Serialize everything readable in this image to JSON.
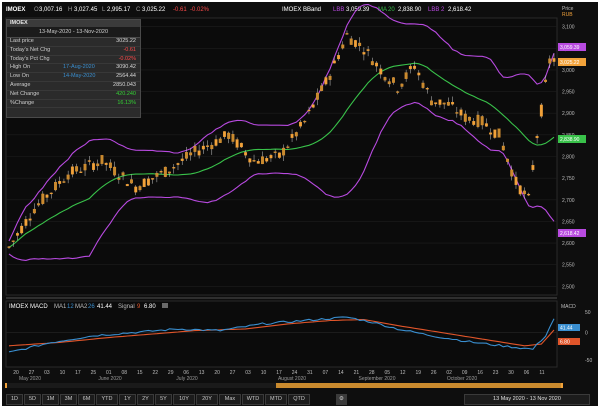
{
  "header": {
    "symbol": "IMOEX",
    "open_label": "O",
    "open": "3,007.16",
    "high_label": "H",
    "high": "3,027.45",
    "low_label": "L",
    "low": "2,995.17",
    "close_label": "C",
    "close": "3,025.22",
    "change": "-0.61",
    "change_pct": "-0.02%",
    "bb_label": "IMOEX BBand",
    "lbb_label": "LBB",
    "lbb_value": "3,059.39",
    "ma_label": "MA",
    "ma_period": "20",
    "ma_value": "2,838.90",
    "lbb2_label": "LBB",
    "lbb2_period": "2",
    "lbb2_value": "2,618.42",
    "price_label": "Price",
    "currency": "RUB"
  },
  "panel": {
    "title": "IMOEX",
    "date_range": "13-May-2020 - 13-Nov-2020",
    "rows": [
      {
        "label": "Last price",
        "mid": "",
        "value": "3025.22",
        "color": "#d8d8d8"
      },
      {
        "label": "Today's Net Chg",
        "mid": "",
        "value": "-0.61",
        "color": "#ff4a4a"
      },
      {
        "label": "Today's Pct Chg",
        "mid": "",
        "value": "-0.02%",
        "color": "#ff4a4a"
      },
      {
        "label": "High On",
        "mid": "17-Aug-2020",
        "value": "3090.42",
        "color": "#d8d8d8"
      },
      {
        "label": "Low On",
        "mid": "14-May-2020",
        "value": "2564.44",
        "color": "#d8d8d8"
      },
      {
        "label": "Average",
        "mid": "",
        "value": "2850.043",
        "color": "#d8d8d8"
      },
      {
        "label": "Net Change",
        "mid": "",
        "value": "420.240",
        "color": "#35d135"
      },
      {
        "label": "%Change",
        "mid": "",
        "value": "16.13%",
        "color": "#35d135"
      }
    ]
  },
  "price_axis": {
    "ticks": [
      "3,100",
      "3,050",
      "3,000",
      "2,950",
      "2,900",
      "2,850",
      "2,800",
      "2,750",
      "2,700",
      "2,650",
      "2,600",
      "2,550",
      "2,500"
    ],
    "badges": [
      {
        "value": "3,059.39",
        "color": "#b84ae0"
      },
      {
        "value": "3,025.22",
        "color": "#f2a23a"
      },
      {
        "value": "2,838.90",
        "color": "#39c24a"
      },
      {
        "value": "2,618.42",
        "color": "#b84ae0"
      }
    ]
  },
  "macd": {
    "label": "IMOEX MACD",
    "ma1_label": "MA1",
    "ma1": "12",
    "ma2_label": "MA2",
    "ma2": "26",
    "value": "41.44",
    "signal_label": "Signal",
    "signal": "9",
    "signal_value": "6.80",
    "axis_title": "MACD",
    "badge_macd": "41.44",
    "badge_signal": "6.80",
    "ticks": [
      "50",
      "0",
      "-50"
    ]
  },
  "x_axis": {
    "days": [
      "20",
      "27",
      "03",
      "10",
      "17",
      "25",
      "01",
      "08",
      "15",
      "22",
      "29",
      "06",
      "13",
      "20",
      "27",
      "03",
      "10",
      "17",
      "24",
      "31",
      "07",
      "14",
      "21",
      "28",
      "05",
      "12",
      "19",
      "26",
      "02",
      "09",
      "16",
      "23",
      "30",
      "06",
      "11"
    ],
    "months": [
      "May 2020",
      "June 2020",
      "July 2020",
      "August 2020",
      "September 2020",
      "October 2020"
    ]
  },
  "toolbar": {
    "buttons": [
      "1D",
      "5D",
      "1M",
      "3M",
      "6M",
      "YTD",
      "1Y",
      "2Y",
      "5Y",
      "10Y",
      "20Y",
      "Max",
      "WTD",
      "MTD",
      "QTD"
    ],
    "date_range": "13 May 2020 - 13 Nov 2020"
  },
  "colors": {
    "background": "#0e0e0e",
    "candle": "#f2a23a",
    "bband": "#b84ae0",
    "ma": "#39c24a",
    "macd": "#3a8fd0",
    "signal": "#e0552a",
    "negative": "#ff4a4a",
    "positive": "#35d135"
  }
}
